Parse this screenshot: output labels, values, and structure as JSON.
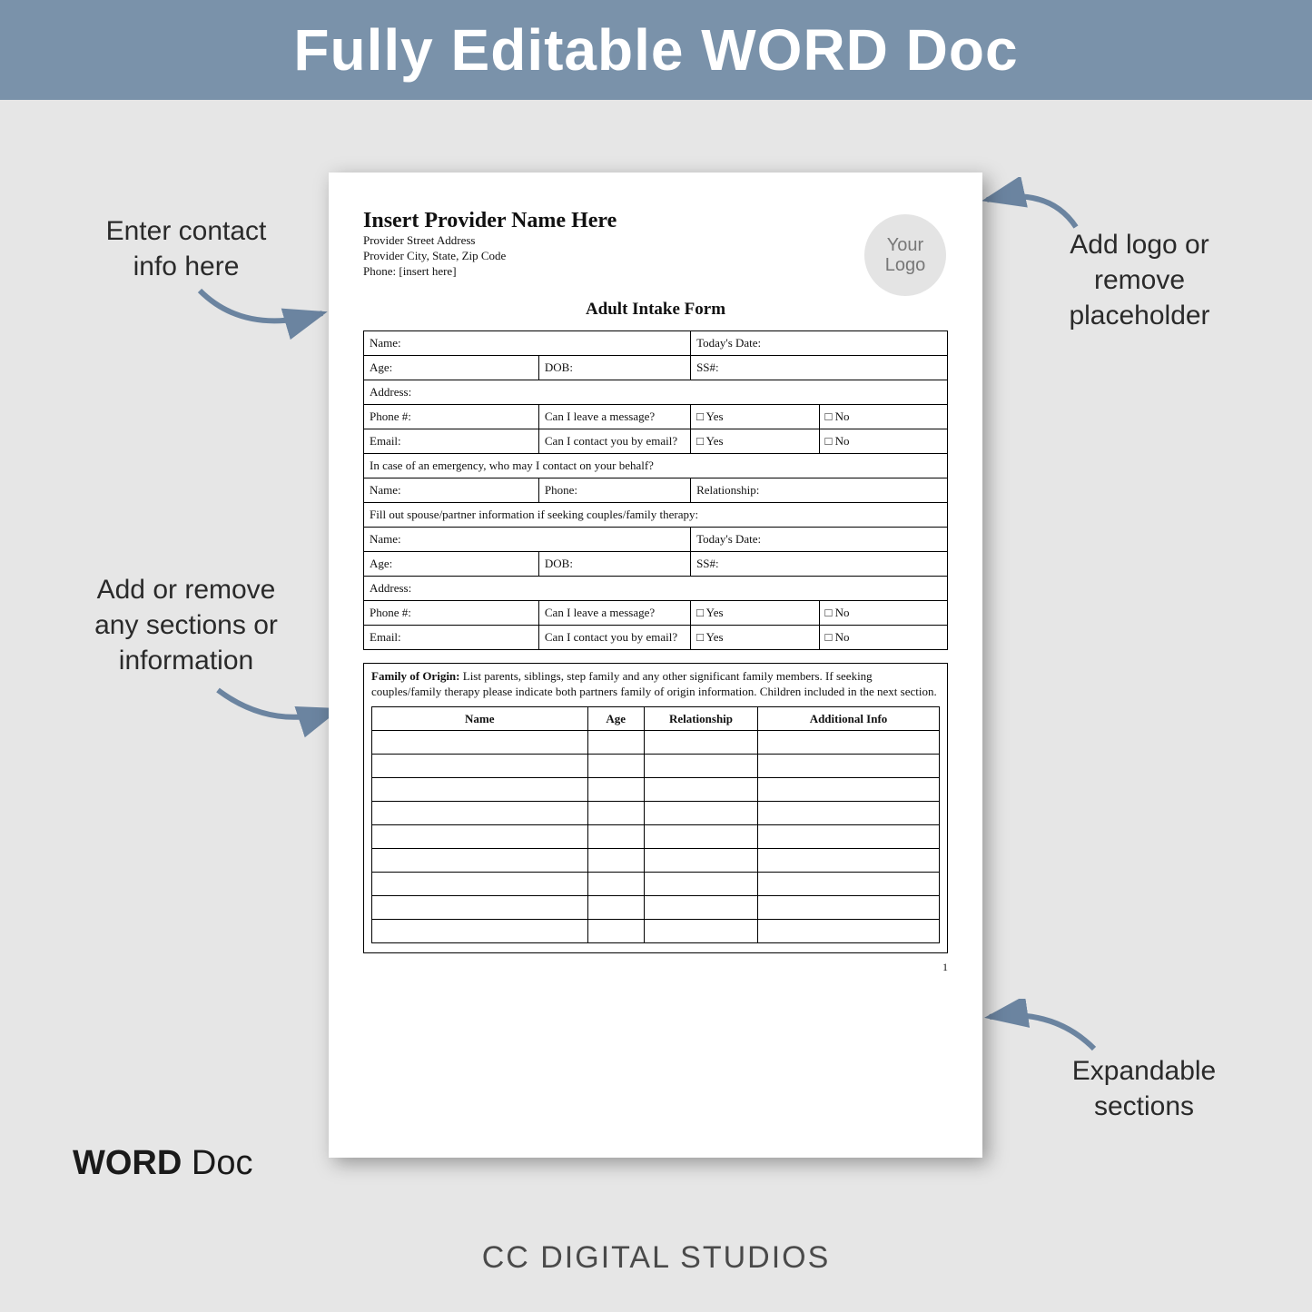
{
  "banner": {
    "text": "Fully Editable WORD Doc",
    "bg": "#7a92aa",
    "text_color": "#ffffff"
  },
  "callouts": {
    "contact": {
      "line1": "Enter contact",
      "line2": "info here"
    },
    "logo": {
      "line1": "Add logo or",
      "line2": "remove",
      "line3": "placeholder"
    },
    "sections": {
      "line1": "Add or remove",
      "line2": "any sections or",
      "line3": "information"
    },
    "expandable": {
      "line1": "Expandable",
      "line2": "sections"
    }
  },
  "page": {
    "provider_name": "Insert Provider Name Here",
    "provider_street": "Provider Street Address",
    "provider_city": "Provider City, State, Zip Code",
    "provider_phone": "Phone: [insert here]",
    "logo_text": "Your Logo",
    "form_title": "Adult Intake Form",
    "fields": {
      "name": "Name:",
      "today": "Today's Date:",
      "age": "Age:",
      "dob": "DOB:",
      "ssn": "SS#:",
      "address": "Address:",
      "phone": "Phone #:",
      "leave_msg": "Can I leave a message?",
      "yes": "□ Yes",
      "no": "□ No",
      "email": "Email:",
      "contact_email": "Can I contact you by email?",
      "emergency": "In case of an emergency, who may I contact on your behalf?",
      "phone2": "Phone:",
      "relationship": "Relationship:",
      "spouse_info": "Fill out spouse/partner information if seeking couples/family therapy:"
    },
    "family": {
      "label": "Family of Origin:",
      "desc": "List parents, siblings, step family and any other significant family members. If seeking couples/family therapy please indicate both partners family of origin information.  Children included in the next section.",
      "col_name": "Name",
      "col_age": "Age",
      "col_rel": "Relationship",
      "col_info": "Additional Info",
      "blank_rows": 9
    },
    "page_number": "1"
  },
  "footer": {
    "bold": "WORD",
    "rest": " Doc"
  },
  "brand": "CC DIGITAL STUDIOS",
  "arrow_color": "#6b84a0"
}
